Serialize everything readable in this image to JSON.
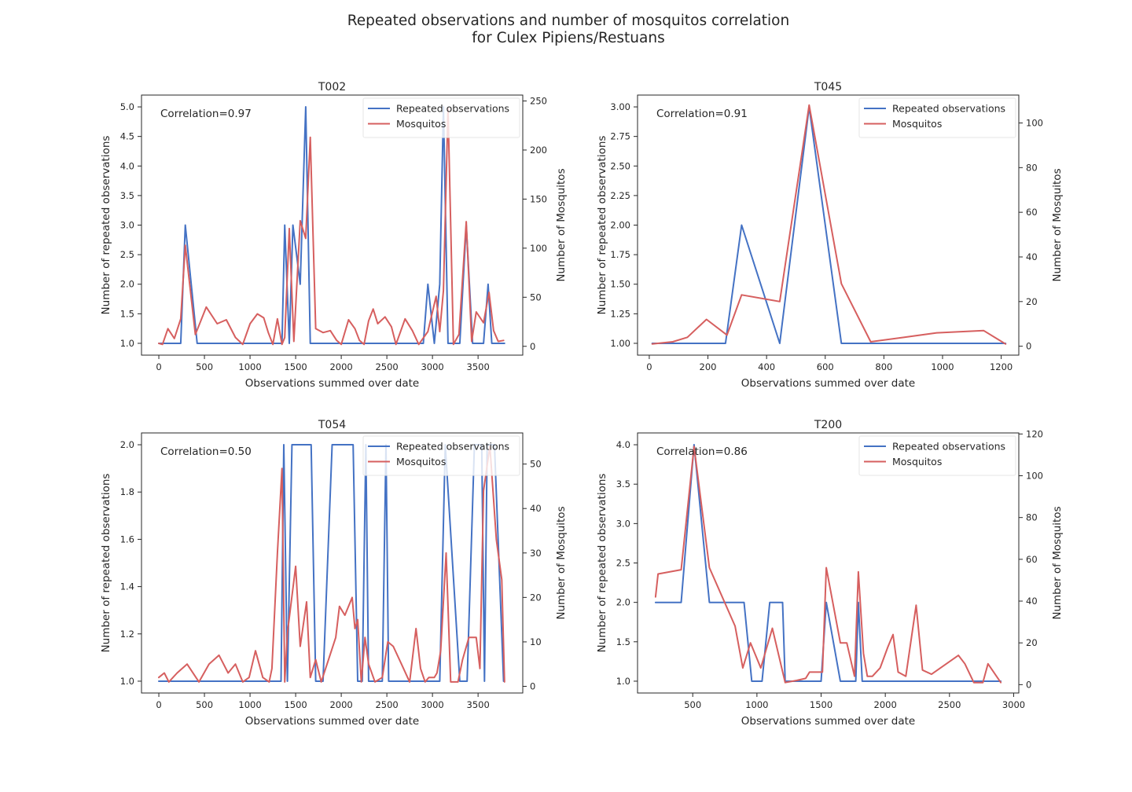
{
  "figure": {
    "title_line1": "Repeated observations and number of mosquitos correlation",
    "title_line2": "for Culex Pipiens/Restuans"
  },
  "colors": {
    "repeated": "#4472c4",
    "mosquitos": "#d65f5f"
  },
  "chart_data": [
    {
      "type": "line",
      "title": "T002",
      "xlabel": "Observations summed over date",
      "ylabel": "Number of repeated observations",
      "y2label": "Number of Mosquitos",
      "annotation": "Correlation=0.97",
      "legend": [
        "Repeated observations",
        "Mosquitos"
      ],
      "legend_loc": "upper right",
      "xlim": [
        -190,
        3990
      ],
      "ylim": [
        0.8,
        5.2
      ],
      "y2lim": [
        -9,
        256
      ],
      "xticks": [
        0,
        500,
        1000,
        1500,
        2000,
        2500,
        3000,
        3500
      ],
      "yticks": [
        "1.0",
        "1.5",
        "2.0",
        "2.5",
        "3.0",
        "3.5",
        "4.0",
        "4.5",
        "5.0"
      ],
      "y2ticks": [
        0,
        50,
        100,
        150,
        200,
        250
      ],
      "series": [
        {
          "name": "Repeated observations",
          "axis": "left",
          "x": [
            0,
            240,
            290,
            420,
            1000,
            1350,
            1380,
            1430,
            1470,
            1550,
            1610,
            1660,
            2000,
            2500,
            2900,
            2950,
            3020,
            3080,
            3120,
            3170,
            3300,
            3370,
            3440,
            3560,
            3610,
            3650,
            3790
          ],
          "y": [
            1,
            1,
            3,
            1,
            1,
            1,
            3,
            1,
            3,
            2,
            5,
            1,
            1,
            1,
            1,
            2,
            1,
            2,
            5,
            1,
            1,
            3,
            1,
            1,
            2,
            1,
            1
          ]
        },
        {
          "name": "Mosquitos",
          "axis": "right",
          "x": [
            0,
            40,
            100,
            170,
            240,
            290,
            400,
            520,
            640,
            740,
            840,
            920,
            1000,
            1080,
            1150,
            1200,
            1250,
            1300,
            1350,
            1380,
            1430,
            1480,
            1550,
            1610,
            1660,
            1720,
            1800,
            1880,
            1950,
            2000,
            2080,
            2150,
            2200,
            2250,
            2300,
            2350,
            2400,
            2480,
            2550,
            2600,
            2700,
            2780,
            2850,
            2950,
            3040,
            3080,
            3120,
            3170,
            3230,
            3290,
            3370,
            3430,
            3480,
            3560,
            3620,
            3670,
            3720,
            3780
          ],
          "y": [
            3,
            2,
            18,
            8,
            28,
            103,
            12,
            40,
            23,
            27,
            9,
            2,
            23,
            33,
            29,
            14,
            2,
            28,
            2,
            9,
            120,
            5,
            128,
            110,
            213,
            18,
            14,
            16,
            6,
            2,
            27,
            18,
            6,
            2,
            26,
            38,
            23,
            30,
            20,
            2,
            28,
            16,
            2,
            15,
            51,
            15,
            57,
            243,
            2,
            12,
            127,
            5,
            35,
            24,
            55,
            16,
            5,
            6
          ]
        }
      ]
    },
    {
      "type": "line",
      "title": "T045",
      "xlabel": "Observations summed over date",
      "ylabel": "Number of repeated observations",
      "y2label": "Number of Mosquitos",
      "annotation": "Correlation=0.91",
      "legend": [
        "Repeated observations",
        "Mosquitos"
      ],
      "legend_loc": "upper right",
      "xlim": [
        -40,
        1260
      ],
      "ylim": [
        0.9,
        3.1
      ],
      "y2lim": [
        -4,
        112.5
      ],
      "xticks": [
        0,
        200,
        400,
        600,
        800,
        1000,
        1200
      ],
      "yticks": [
        "1.00",
        "1.25",
        "1.50",
        "1.75",
        "2.00",
        "2.25",
        "2.50",
        "2.75",
        "3.00"
      ],
      "y2ticks": [
        0,
        20,
        40,
        60,
        80,
        100
      ],
      "series": [
        {
          "name": "Repeated observations",
          "axis": "left",
          "x": [
            10,
            260,
            315,
            445,
            545,
            655,
            1215
          ],
          "y": [
            1,
            1,
            2,
            1,
            3,
            1,
            1
          ]
        },
        {
          "name": "Mosquitos",
          "axis": "right",
          "x": [
            10,
            80,
            130,
            195,
            265,
            315,
            445,
            545,
            655,
            755,
            870,
            980,
            1140,
            1215
          ],
          "y": [
            1,
            2,
            4,
            12,
            5,
            23,
            20,
            108,
            28,
            2,
            4,
            6,
            7,
            1
          ]
        }
      ]
    },
    {
      "type": "line",
      "title": "T054",
      "xlabel": "Observations summed over date",
      "ylabel": "Number of repeated observations",
      "y2label": "Number of Mosquitos",
      "annotation": "Correlation=0.50",
      "legend": [
        "Repeated observations",
        "Mosquitos"
      ],
      "legend_loc": "upper right",
      "xlim": [
        -190,
        3990
      ],
      "ylim": [
        0.95,
        2.05
      ],
      "y2lim": [
        -1.5,
        57
      ],
      "xticks": [
        0,
        500,
        1000,
        1500,
        2000,
        2500,
        3000,
        3500
      ],
      "yticks": [
        "1.0",
        "1.2",
        "1.4",
        "1.6",
        "1.8",
        "2.0"
      ],
      "y2ticks": [
        0,
        10,
        20,
        30,
        40,
        50
      ],
      "series": [
        {
          "name": "Repeated observations",
          "axis": "left",
          "x": [
            0,
            1340,
            1370,
            1410,
            1460,
            1670,
            1720,
            1800,
            1900,
            2130,
            2180,
            2230,
            2270,
            2300,
            2450,
            2490,
            2520,
            3080,
            3140,
            3300,
            3380,
            3460,
            3540,
            3570,
            3600,
            3680,
            3780
          ],
          "y": [
            1,
            1,
            2,
            1,
            2,
            2,
            1,
            1,
            2,
            2,
            1,
            1,
            2,
            1,
            1,
            2,
            1,
            1,
            2,
            1,
            1,
            2,
            2,
            1,
            2,
            2,
            1
          ]
        },
        {
          "name": "Mosquitos",
          "axis": "right",
          "x": [
            0,
            60,
            110,
            200,
            310,
            440,
            550,
            660,
            760,
            840,
            920,
            990,
            1060,
            1140,
            1210,
            1240,
            1300,
            1350,
            1380,
            1410,
            1500,
            1550,
            1620,
            1660,
            1720,
            1780,
            1860,
            1940,
            1980,
            2040,
            2120,
            2150,
            2180,
            2220,
            2260,
            2300,
            2370,
            2450,
            2510,
            2570,
            2660,
            2750,
            2820,
            2870,
            2920,
            2960,
            3020,
            3050,
            3090,
            3150,
            3200,
            3280,
            3330,
            3400,
            3480,
            3520,
            3560,
            3630,
            3700,
            3760,
            3790
          ],
          "y": [
            2,
            3,
            1,
            3,
            5,
            1,
            5,
            7,
            3,
            5,
            1,
            2,
            8,
            2,
            1,
            4,
            30,
            49,
            1,
            12,
            27,
            9,
            19,
            2,
            6,
            1,
            6,
            11,
            18,
            16,
            20,
            13,
            15,
            1,
            11,
            5,
            1,
            2,
            10,
            9,
            5,
            1,
            13,
            4,
            1,
            2,
            2,
            3,
            8,
            30,
            1,
            1,
            6,
            11,
            11,
            4,
            44,
            54,
            33,
            24,
            1
          ]
        }
      ]
    },
    {
      "type": "line",
      "title": "T200",
      "xlabel": "Observations summed over date",
      "ylabel": "Number of repeated observations",
      "y2label": "Number of Mosquitos",
      "annotation": "Correlation=0.86",
      "legend": [
        "Repeated observations",
        "Mosquitos"
      ],
      "legend_loc": "upper right",
      "xlim": [
        70,
        3040
      ],
      "ylim": [
        0.85,
        4.15
      ],
      "y2lim": [
        -4,
        120.5
      ],
      "xticks": [
        500,
        1000,
        1500,
        2000,
        2500,
        3000
      ],
      "yticks": [
        "1.0",
        "1.5",
        "2.0",
        "2.5",
        "3.0",
        "3.5",
        "4.0"
      ],
      "y2ticks": [
        0,
        20,
        40,
        60,
        80,
        100,
        120
      ],
      "series": [
        {
          "name": "Repeated observations",
          "axis": "left",
          "x": [
            210,
            410,
            510,
            630,
            900,
            960,
            1040,
            1100,
            1200,
            1220,
            1500,
            1540,
            1650,
            1770,
            1790,
            1820,
            2900
          ],
          "y": [
            2,
            2,
            4,
            2,
            2,
            1,
            1,
            2,
            2,
            1,
            1,
            2,
            1,
            1,
            2,
            1,
            1
          ]
        },
        {
          "name": "Mosquitos",
          "axis": "right",
          "x": [
            210,
            230,
            410,
            510,
            630,
            830,
            890,
            950,
            1030,
            1120,
            1220,
            1310,
            1380,
            1410,
            1510,
            1540,
            1650,
            1700,
            1760,
            1790,
            1830,
            1860,
            1900,
            1960,
            2020,
            2060,
            2100,
            2160,
            2240,
            2290,
            2360,
            2570,
            2620,
            2690,
            2760,
            2800,
            2900
          ],
          "y": [
            42,
            53,
            55,
            114,
            56,
            28,
            8,
            20,
            8,
            27,
            1,
            2,
            3,
            6,
            6,
            56,
            20,
            20,
            4,
            54,
            15,
            4,
            4,
            8,
            18,
            24,
            6,
            4,
            38,
            7,
            5,
            14,
            10,
            1,
            1,
            10,
            1
          ]
        }
      ]
    }
  ]
}
